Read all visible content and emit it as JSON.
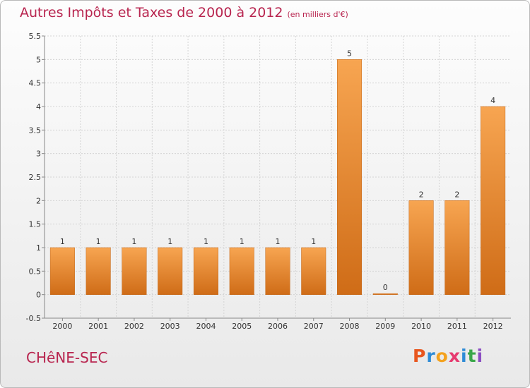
{
  "page": {
    "title": "Autres Impôts et Taxes de 2000 à 2012",
    "unit": "(en milliers d'€)",
    "place": "CHêNE-SEC",
    "logo": {
      "letters": [
        "P",
        "r",
        "o",
        "x",
        "i",
        "t",
        "i"
      ],
      "colors": [
        "#e8561e",
        "#2e8bd6",
        "#f4a21e",
        "#e63a6f",
        "#2e8bd6",
        "#3aa74a",
        "#8a4cc2"
      ]
    }
  },
  "chart_data": {
    "type": "bar",
    "title": "Autres Impôts et Taxes de 2000 à 2012",
    "subtitle": "(en milliers d'€)",
    "categories": [
      "2000",
      "2001",
      "2002",
      "2003",
      "2004",
      "2005",
      "2006",
      "2007",
      "2008",
      "2009",
      "2010",
      "2011",
      "2012"
    ],
    "values": [
      1,
      1,
      1,
      1,
      1,
      1,
      1,
      1,
      5,
      0,
      2,
      2,
      4
    ],
    "data_labels": [
      "1",
      "1",
      "1",
      "1",
      "1",
      "1",
      "1",
      "1",
      "5",
      "0",
      "2",
      "2",
      "4"
    ],
    "ylim": [
      -0.5,
      5.5
    ],
    "yticks": [
      -0.5,
      0,
      0.5,
      1,
      1.5,
      2,
      2.5,
      3,
      3.5,
      4,
      4.5,
      5,
      5.5
    ],
    "ytick_labels": [
      "-0.5",
      "0",
      "0.5",
      "1",
      "1.5",
      "2",
      "2.5",
      "3",
      "3.5",
      "4",
      "4.5",
      "5",
      "5.5"
    ],
    "grid": true,
    "bar_color_light": "#f7a551",
    "bar_color_dark": "#cf6c17"
  }
}
